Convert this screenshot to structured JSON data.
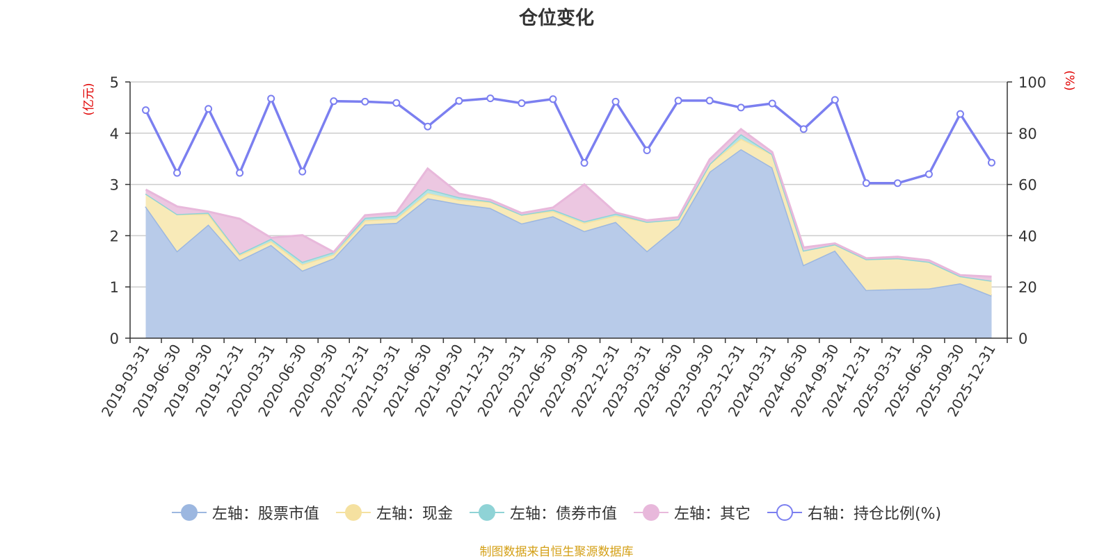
{
  "chart_data": {
    "type": "area",
    "title": "仓位变化",
    "left_axis_label": "(亿元)",
    "right_axis_label": "(%)",
    "left_ylim": [
      0,
      5
    ],
    "left_ticks": [
      "0",
      "1",
      "2",
      "3",
      "4",
      "5"
    ],
    "right_ylim": [
      0,
      100
    ],
    "right_ticks": [
      "0",
      "20",
      "40",
      "60",
      "80",
      "100"
    ],
    "categories": [
      "2019-03-31",
      "2019-06-30",
      "2019-09-30",
      "2019-12-31",
      "2020-03-31",
      "2020-06-30",
      "2020-09-30",
      "2020-12-31",
      "2021-03-31",
      "2021-06-30",
      "2021-09-30",
      "2021-12-31",
      "2022-03-31",
      "2022-06-30",
      "2022-09-30",
      "2022-12-31",
      "2023-03-31",
      "2023-06-30",
      "2023-09-30",
      "2023-12-31",
      "2024-03-31",
      "2024-06-30",
      "2024-09-30",
      "2024-12-31",
      "2025-03-31",
      "2025-06-30",
      "2025-09-30",
      "2025-12-31"
    ],
    "series": [
      {
        "name": "左轴：股票市值",
        "axis": "left",
        "color": "#9cb7e0",
        "fill": "#b8cbe9",
        "values": [
          2.57,
          1.7,
          2.22,
          1.52,
          1.82,
          1.32,
          1.56,
          2.22,
          2.25,
          2.73,
          2.62,
          2.54,
          2.24,
          2.38,
          2.09,
          2.27,
          1.7,
          2.2,
          3.25,
          3.69,
          3.33,
          1.43,
          1.71,
          0.94,
          0.96,
          0.97,
          1.07,
          0.83
        ]
      },
      {
        "name": "左轴：现金",
        "axis": "left",
        "color": "#f5e1a0",
        "fill": "#f8eab8",
        "values": [
          0.25,
          0.72,
          0.2,
          0.1,
          0.07,
          0.12,
          0.07,
          0.08,
          0.08,
          0.1,
          0.08,
          0.12,
          0.17,
          0.1,
          0.16,
          0.12,
          0.57,
          0.12,
          0.15,
          0.2,
          0.26,
          0.28,
          0.12,
          0.6,
          0.6,
          0.52,
          0.14,
          0.29
        ]
      },
      {
        "name": "左轴：债券市值",
        "axis": "left",
        "color": "#8fd3d6",
        "fill": "#b4e3e5",
        "values": [
          0.0,
          0.0,
          0.03,
          0.03,
          0.05,
          0.05,
          0.05,
          0.05,
          0.06,
          0.08,
          0.05,
          0.01,
          0.0,
          0.03,
          0.03,
          0.04,
          0.0,
          0.0,
          0.0,
          0.09,
          0.0,
          0.0,
          0.0,
          0.0,
          0.0,
          0.0,
          0.0,
          0.0
        ]
      },
      {
        "name": "左轴：其它",
        "axis": "left",
        "color": "#e8b8db",
        "fill": "#ecc7e1",
        "values": [
          0.08,
          0.15,
          0.02,
          0.68,
          0.02,
          0.52,
          0.0,
          0.05,
          0.06,
          0.4,
          0.07,
          0.03,
          0.03,
          0.04,
          0.72,
          0.02,
          0.03,
          0.04,
          0.09,
          0.1,
          0.04,
          0.06,
          0.02,
          0.02,
          0.03,
          0.03,
          0.02,
          0.08
        ]
      },
      {
        "name": "右轴：持仓比例(%)",
        "axis": "right",
        "color": "#7b7ff0",
        "values": [
          89.0,
          64.5,
          89.5,
          64.5,
          93.5,
          65.0,
          92.5,
          92.3,
          91.8,
          82.6,
          92.6,
          93.6,
          91.7,
          93.3,
          68.4,
          92.3,
          73.3,
          92.7,
          92.7,
          90.0,
          91.6,
          81.6,
          93.0,
          60.5,
          60.5,
          64.0,
          87.5,
          68.5
        ]
      }
    ]
  },
  "source_note": "制图数据来自恒生聚源数据库"
}
